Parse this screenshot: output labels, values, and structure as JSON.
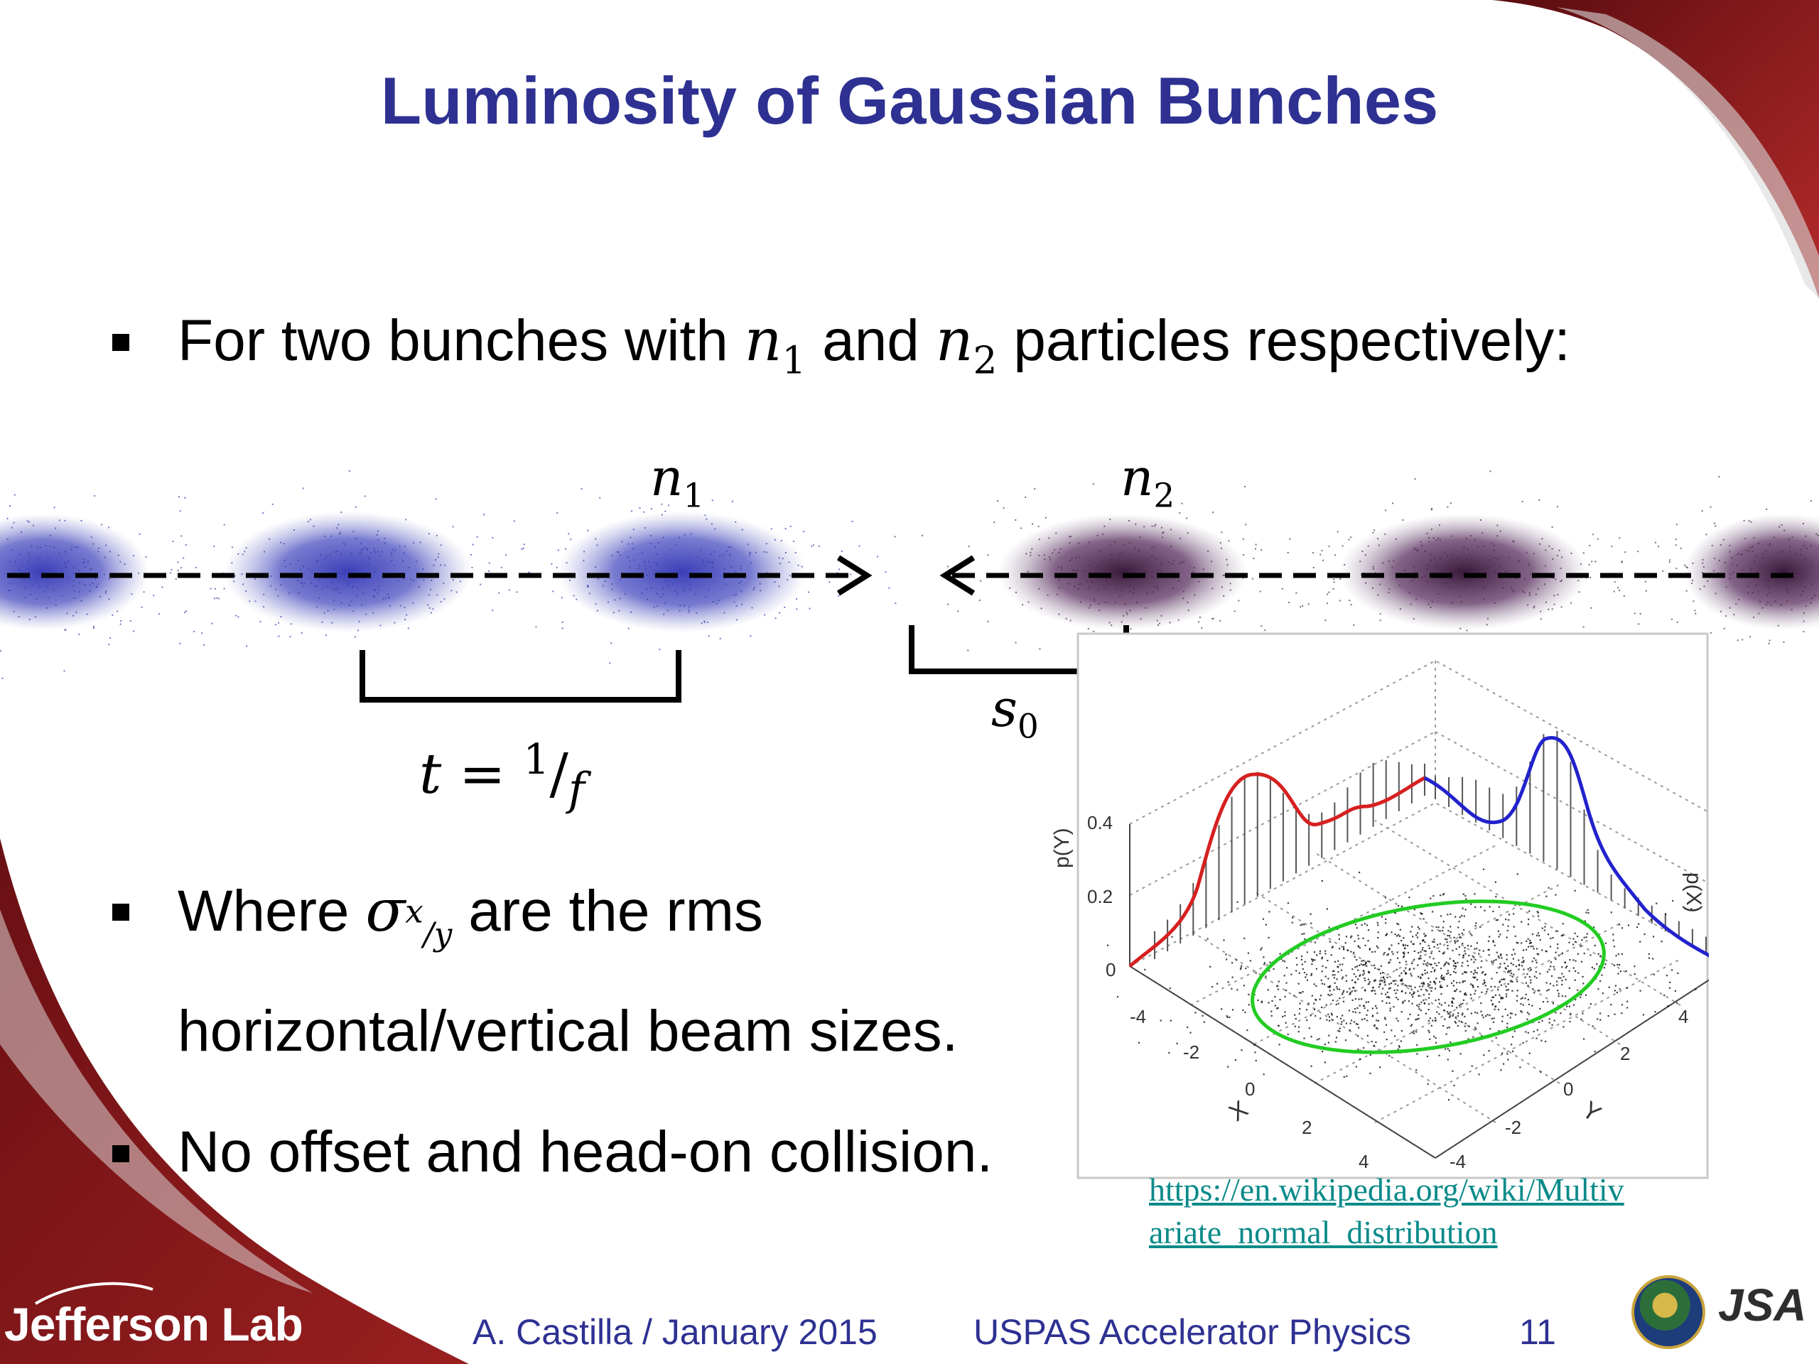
{
  "slide": {
    "title": "Luminosity of Gaussian Bunches",
    "bullets": {
      "b1": {
        "pre": "For two bunches with ",
        "n1": "n",
        "n1_sub": "1",
        "mid": " and ",
        "n2": "n",
        "n2_sub": "2",
        "post": " particles respectively:"
      },
      "b2_line1": {
        "pre": "Where ",
        "sigma": "σ",
        "sigma_sub": "x",
        "sigma_sub2": "/y",
        "post": " are the rms"
      },
      "b2_line2": "horizontal/vertical beam sizes.",
      "b3": "No offset and head-on collision."
    },
    "diagram": {
      "n1_label": "n",
      "n1_sub": "1",
      "n2_label": "n",
      "n2_sub": "2",
      "t_label": "t = ",
      "t_num": "1",
      "t_den": "f",
      "s0_label": "s",
      "s0_sub": "0",
      "colors": {
        "bunch_left": "#3b3fa8",
        "bunch_right": "#4a2a4a",
        "arrow": "#000000"
      }
    },
    "plot": {
      "py_label": "p(Y)",
      "px_label": "p(X)",
      "z_ticks": [
        "0.4",
        "0.2",
        "0"
      ],
      "x_axis_label": "X",
      "y_axis_label": "Y",
      "x_ticks": [
        "-4",
        "-2",
        "0",
        "2",
        "4"
      ],
      "y_ticks": [
        "-4",
        "-2",
        "0",
        "2",
        "4"
      ],
      "colors": {
        "red_curve": "#d62020",
        "blue_curve": "#2222cc",
        "ellipse": "#22cc22"
      }
    },
    "link": {
      "line1": "https://en.wikipedia.org/wiki/Multiv",
      "line2": "ariate_normal_distribution"
    },
    "footer": {
      "author": "A. Castilla / January 2015",
      "course": "USPAS Accelerator Physics",
      "page": "11",
      "logo_left": "Jefferson Lab",
      "logo_right": "JSA"
    },
    "colors": {
      "title": "#2e3192",
      "footer_text": "#2e3192",
      "swoosh": "#8b1a1a"
    }
  }
}
